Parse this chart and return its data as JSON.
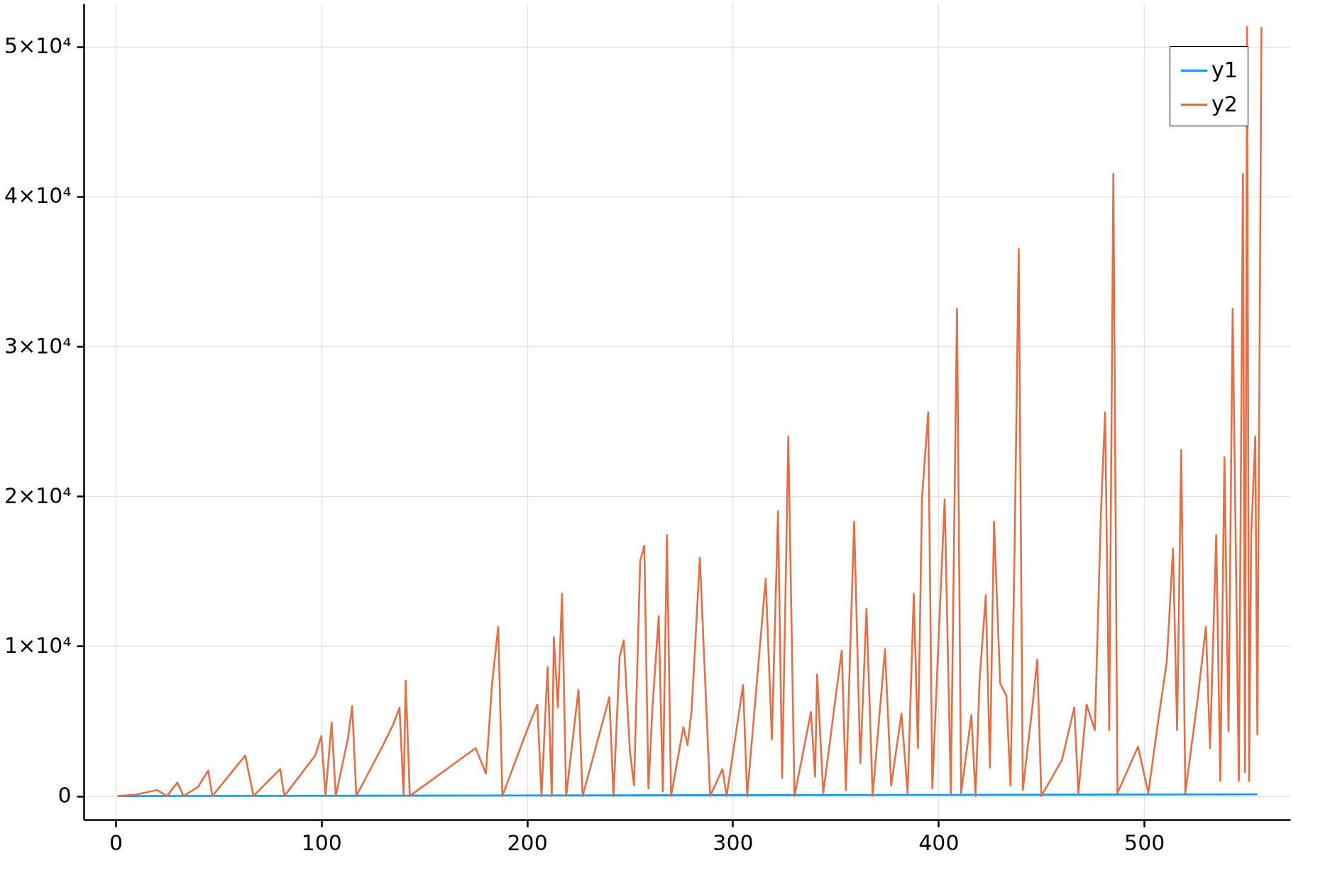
{
  "chart_data": {
    "type": "line",
    "xlim": [
      -15.5,
      571
    ],
    "ylim": [
      -1580,
      52870
    ],
    "xticks": [
      0,
      100,
      200,
      300,
      400,
      500
    ],
    "yticks": [
      0,
      {
        "value": 10000,
        "label": "1×10⁴"
      },
      {
        "value": 20000,
        "label": "2×10⁴"
      },
      {
        "value": 30000,
        "label": "3×10⁴"
      },
      {
        "value": 40000,
        "label": "4×10⁴"
      },
      {
        "value": 50000,
        "label": "5×10⁴"
      }
    ],
    "grid": true,
    "legend": "top right",
    "line_style": "solid",
    "marker": "none",
    "series": [
      {
        "name": "y1",
        "color": "#009afa",
        "x": [
          1,
          100,
          200,
          300,
          400,
          500,
          555
        ],
        "values": [
          0,
          20,
          40,
          60,
          80,
          100,
          110
        ]
      },
      {
        "name": "y2",
        "color": "#e36f47",
        "x": [
          1,
          10,
          20,
          25,
          30,
          33,
          40,
          45,
          47,
          63,
          67,
          80,
          82,
          97,
          100,
          102,
          105,
          107,
          113,
          115,
          117,
          130,
          135,
          138,
          140,
          141,
          143,
          175,
          180,
          183,
          186,
          188,
          200,
          205,
          207,
          210,
          212,
          213,
          215,
          217,
          219,
          225,
          227,
          240,
          242,
          245,
          247,
          250,
          252,
          255,
          257,
          259,
          261,
          264,
          266,
          268,
          270,
          273,
          276,
          278,
          280,
          284,
          286,
          289,
          295,
          297,
          305,
          307,
          316,
          319,
          322,
          324,
          327,
          330,
          338,
          340,
          341,
          344,
          350,
          353,
          355,
          359,
          362,
          365,
          368,
          374,
          377,
          382,
          385,
          388,
          390,
          392,
          395,
          397,
          400,
          403,
          406,
          409,
          411,
          416,
          418,
          420,
          423,
          425,
          427,
          430,
          433,
          435,
          437,
          439,
          441,
          446,
          448,
          450,
          460,
          466,
          468,
          472,
          476,
          479,
          481,
          483,
          485,
          487,
          497,
          502,
          507,
          511,
          514,
          516,
          518,
          520,
          526,
          530,
          532,
          535,
          537,
          539,
          541,
          543,
          546,
          548,
          549,
          550,
          551,
          552,
          554,
          555,
          557
        ],
        "values": [
          0,
          100,
          400,
          0,
          900,
          0,
          600,
          1700,
          0,
          2700,
          0,
          1800,
          0,
          2700,
          4000,
          0,
          4900,
          0,
          3900,
          6000,
          0,
          3400,
          4800,
          5900,
          0,
          7700,
          0,
          3200,
          1500,
          7500,
          11300,
          0,
          4400,
          6100,
          0,
          8600,
          0,
          10600,
          5900,
          13500,
          0,
          7100,
          0,
          6600,
          0,
          9300,
          10400,
          3000,
          700,
          15700,
          16700,
          500,
          6000,
          12000,
          300,
          17400,
          0,
          2300,
          4600,
          3400,
          5700,
          15900,
          9500,
          0,
          1800,
          0,
          7400,
          0,
          14500,
          3800,
          19000,
          1200,
          24000,
          0,
          5600,
          1300,
          8100,
          200,
          6600,
          9700,
          400,
          18300,
          2200,
          12500,
          0,
          9800,
          700,
          5500,
          200,
          13500,
          3200,
          19900,
          25600,
          500,
          10300,
          19800,
          200,
          32500,
          200,
          5400,
          0,
          7800,
          13400,
          1900,
          18300,
          7500,
          6700,
          700,
          16500,
          36500,
          400,
          6400,
          9100,
          0,
          2400,
          5900,
          200,
          6100,
          4400,
          19000,
          25600,
          4400,
          41500,
          200,
          3300,
          200,
          5200,
          9000,
          16500,
          4400,
          23100,
          200,
          6500,
          11300,
          3200,
          17400,
          1000,
          22600,
          4300,
          32500,
          1000,
          41500,
          1600,
          51300,
          1000,
          17300,
          24000,
          4100,
          51300
        ]
      }
    ]
  }
}
